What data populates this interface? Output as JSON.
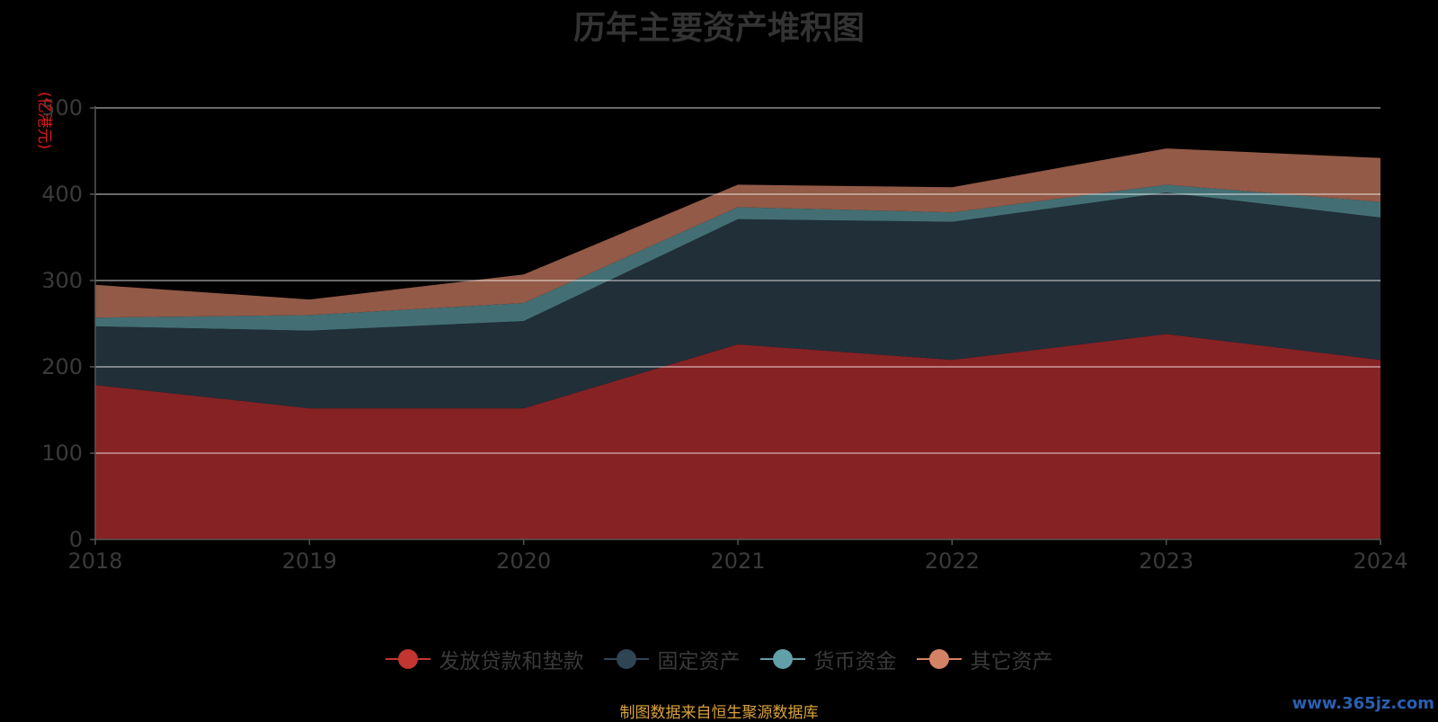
{
  "chart_data": {
    "type": "area",
    "stacked": true,
    "title": "历年主要资产堆积图",
    "unit_label": "(亿港元)",
    "x": [
      "2018",
      "2019",
      "2020",
      "2021",
      "2022",
      "2023",
      "2024"
    ],
    "ylim": [
      0,
      500
    ],
    "yticks": [
      0,
      100,
      200,
      300,
      400,
      500
    ],
    "grid": true,
    "legend_position": "bottom",
    "series": [
      {
        "name": "发放贷款和垫款",
        "values": [
          179,
          152,
          152,
          226,
          208,
          238,
          208
        ],
        "color": "#c23531",
        "fill": "#862223"
      },
      {
        "name": "固定资产",
        "values": [
          68,
          90,
          101,
          145,
          160,
          164,
          165
        ],
        "color": "#2f4554",
        "fill": "#212f39"
      },
      {
        "name": "货币资金",
        "values": [
          10,
          18,
          21,
          14,
          11,
          9,
          18
        ],
        "color": "#61a0a8",
        "fill": "#436f74"
      },
      {
        "name": "其它资产",
        "values": [
          38,
          18,
          33,
          26,
          29,
          42,
          51
        ],
        "color": "#d48265",
        "fill": "#925a47"
      }
    ]
  },
  "source_note": "制图数据来自恒生聚源数据库",
  "watermark": "www.365jz.com"
}
